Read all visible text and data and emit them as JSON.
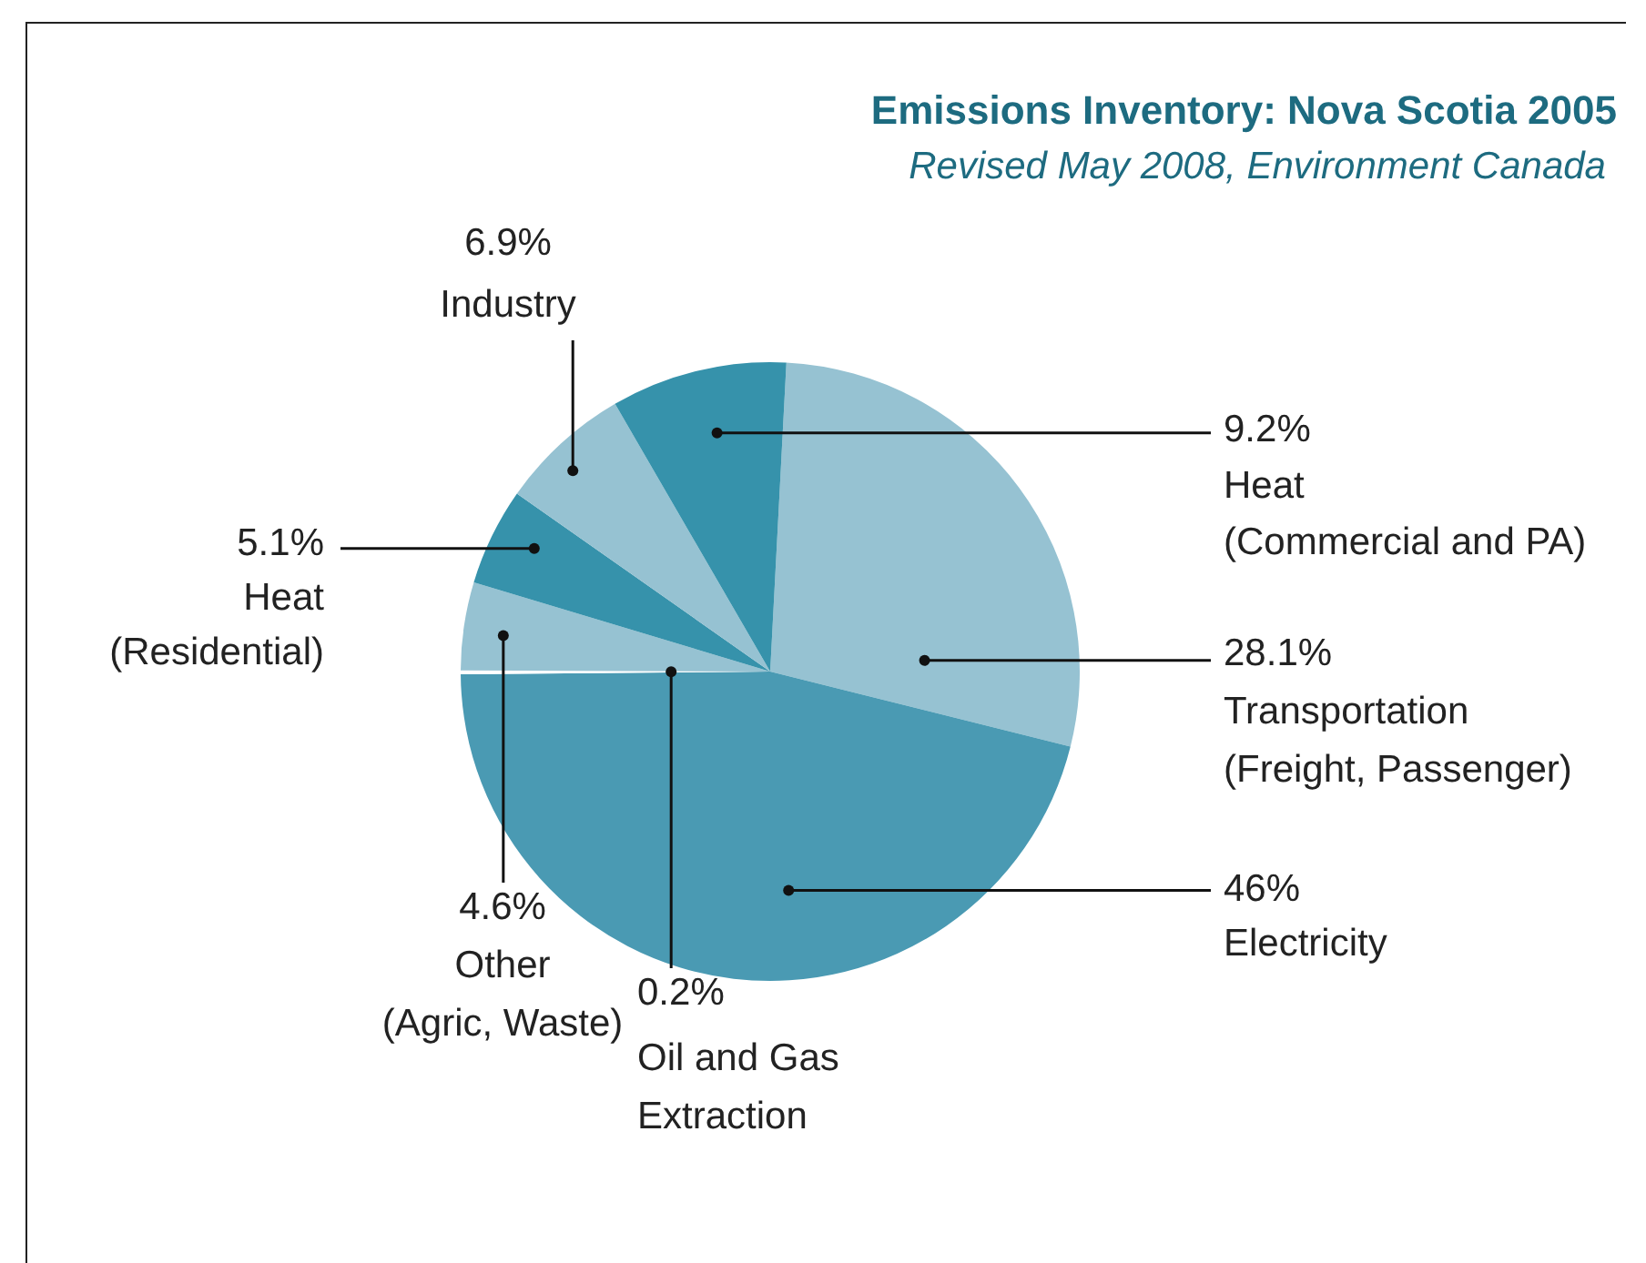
{
  "chart_data": {
    "type": "pie",
    "title": "Emissions Inventory: Nova Scotia 2005",
    "subtitle": "Revised May 2008, Environment Canada",
    "categories": [
      "Transportation\n(Freight, Passenger)",
      "Electricity",
      "Oil and Gas\nExtraction",
      "Other\n(Agric, Waste)",
      "Heat\n(Residential)",
      "Industry",
      "Heat\n(Commercial and PA)"
    ],
    "values": [
      28.1,
      46,
      0.2,
      4.6,
      5.1,
      6.9,
      9.2
    ],
    "colors": [
      "#96c2d2",
      "#4a9ab3",
      "#ffffff",
      "#96c2d2",
      "#3692ab",
      "#96c2d2",
      "#3692ab"
    ],
    "value_labels": [
      "28.1%",
      "46%",
      "0.2%",
      "4.6%",
      "5.1%",
      "6.9%",
      "9.2%"
    ]
  }
}
